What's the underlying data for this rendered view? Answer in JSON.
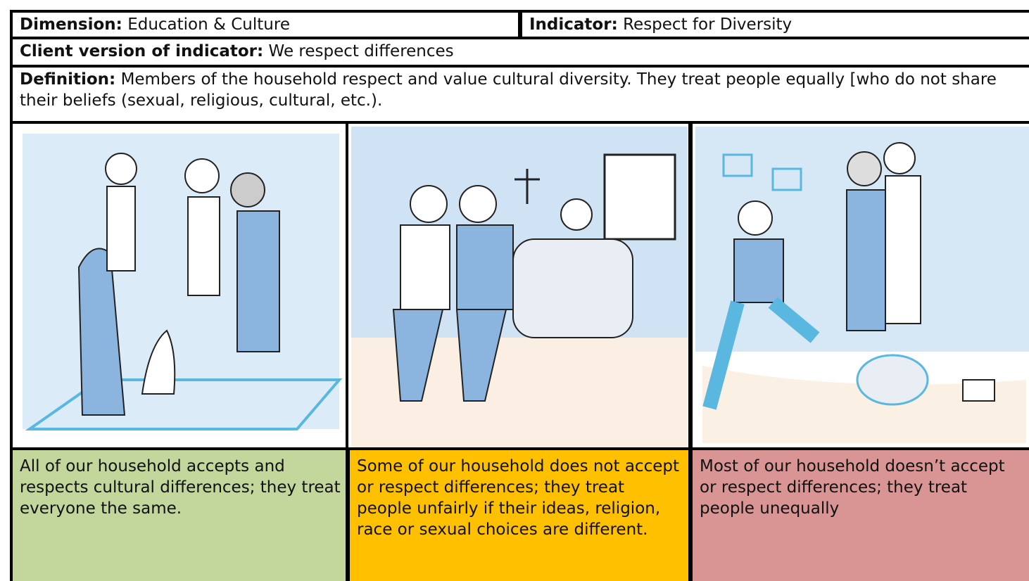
{
  "header": {
    "dimension": {
      "label": "Dimension:",
      "text": "Education & Culture"
    },
    "indicator": {
      "label": "Indicator:",
      "text": "Respect for Diversity"
    },
    "client_version": {
      "label": "Client version of indicator:",
      "text": "We respect differences"
    },
    "definition": {
      "label": "Definition:",
      "text": "Members of the household respect and value cultural diversity. They treat people equally [who do not share their beliefs (sexual, religious, cultural, etc.)."
    }
  },
  "levels": [
    {
      "text": "All of our household accepts and respects cultural differences; they treat everyone the same."
    },
    {
      "text": "Some of our household does not accept or respect differences; they treat people unfairly if their ideas, religion, race or sexual choices are different."
    },
    {
      "text": "Most of our household doesn’t accept or respect differences; they treat people unequally"
    }
  ]
}
